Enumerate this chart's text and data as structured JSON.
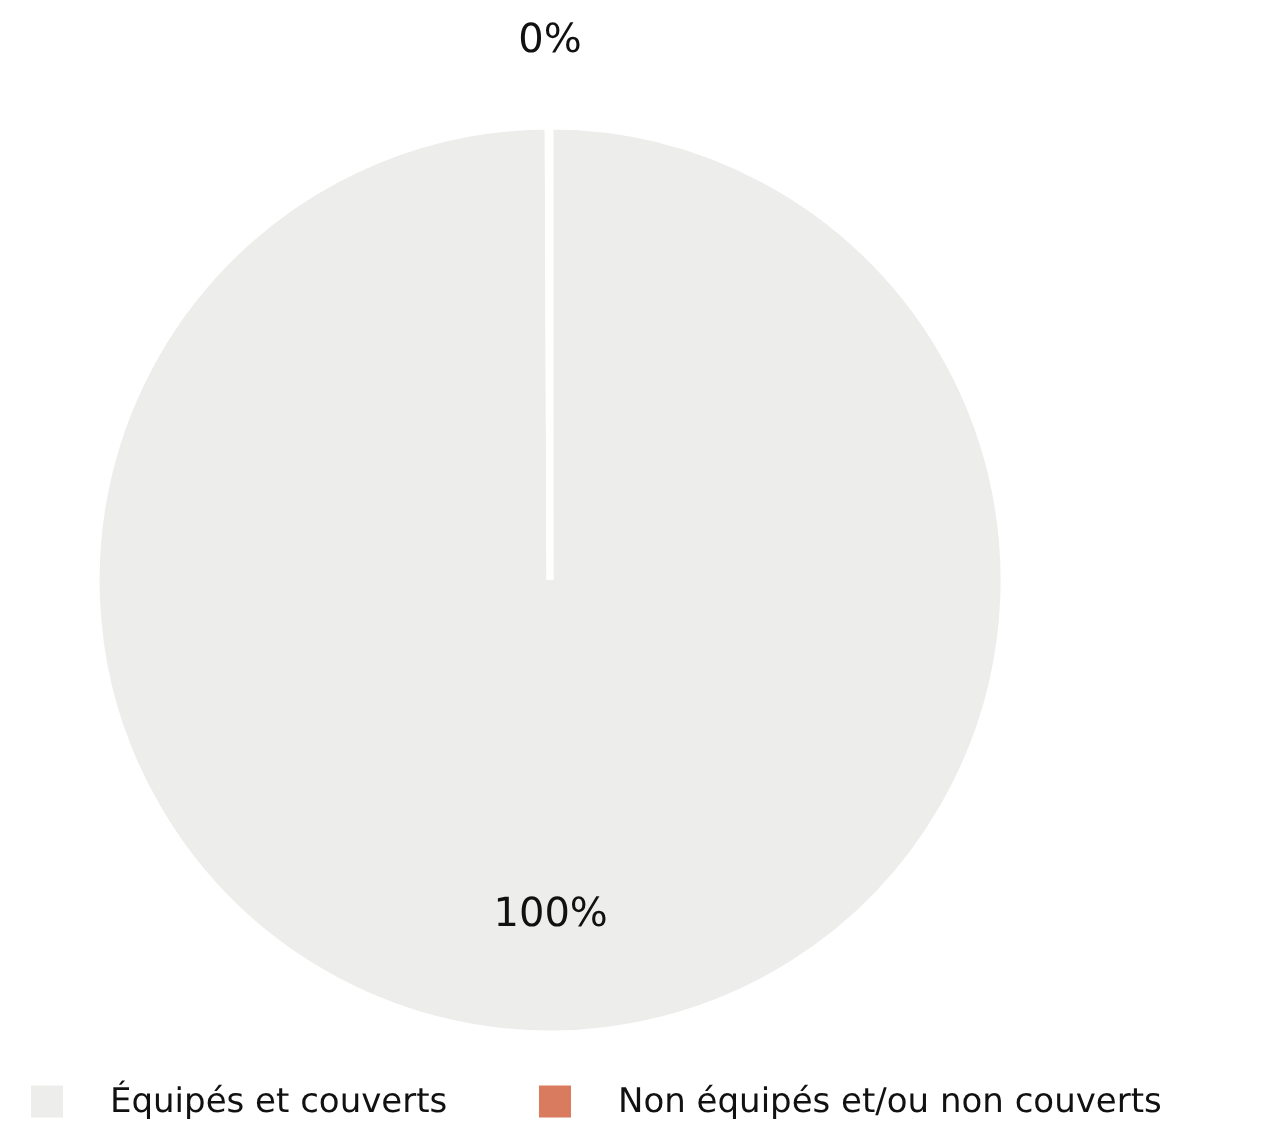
{
  "chart_data": {
    "type": "pie",
    "categories": [
      "Équipés et couverts",
      "Non équipés et/ou non couverts"
    ],
    "values": [
      100,
      0
    ],
    "colors": [
      "#ededeb",
      "#d97b5f"
    ],
    "value_labels": [
      "100%",
      "0%"
    ],
    "legend": "bottom"
  }
}
